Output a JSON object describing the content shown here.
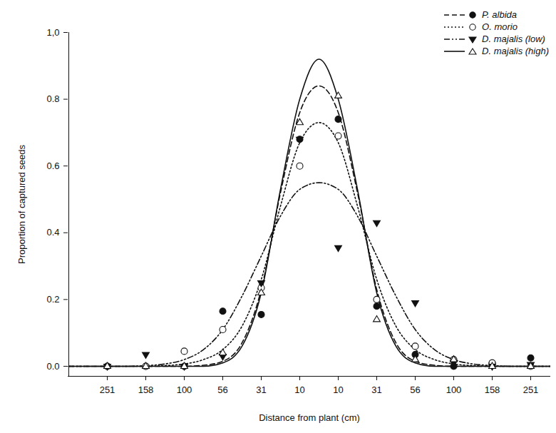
{
  "chart_data": {
    "type": "line",
    "x_label": "Distance from plant (cm)",
    "y_label": "Proportion of captured seeds",
    "categories": [
      null,
      null,
      "251",
      null,
      "158",
      null,
      "100",
      null,
      "56",
      null,
      "31",
      null,
      "10",
      null,
      "10",
      null,
      "31",
      null,
      "56",
      null,
      "100",
      null,
      "158",
      null,
      "251",
      null
    ],
    "ylim": [
      -0.03,
      1.0
    ],
    "yticks": [
      {
        "value": 0,
        "label": "0.0"
      },
      0.2,
      0.4,
      0.6,
      0.8,
      {
        "value": 1,
        "label": "1,0"
      }
    ],
    "legend": "top-right",
    "series": [
      {
        "name": "P. albida",
        "color": "#111111",
        "marker": "circle",
        "line_style": "dashed",
        "values": [
          0,
          0,
          0,
          0,
          0,
          0,
          0,
          0.003,
          0.015,
          0.07,
          0.23,
          0.52,
          0.76,
          0.84,
          0.76,
          0.52,
          0.23,
          0.07,
          0.015,
          0.003,
          0,
          0,
          0,
          0,
          0,
          0
        ],
        "observed": [
          null,
          null,
          0,
          null,
          0,
          null,
          0,
          null,
          0.165,
          null,
          0.155,
          null,
          0.68,
          null,
          0.74,
          null,
          0.18,
          null,
          0.035,
          null,
          0,
          null,
          0.01,
          null,
          0.025,
          null
        ]
      },
      {
        "name": "O. morio",
        "color": "#111111",
        "marker": "circle-open",
        "line_style": "dotted",
        "values": [
          0,
          0,
          0,
          0,
          0,
          0.002,
          0.007,
          0.02,
          0.05,
          0.12,
          0.26,
          0.48,
          0.67,
          0.73,
          0.67,
          0.48,
          0.26,
          0.12,
          0.05,
          0.02,
          0.007,
          0.002,
          0,
          0,
          0,
          0
        ],
        "observed": [
          null,
          null,
          0,
          null,
          0,
          null,
          0.045,
          null,
          0.11,
          null,
          0.235,
          null,
          0.6,
          null,
          0.69,
          null,
          0.2,
          null,
          0.06,
          null,
          0.02,
          null,
          0.01,
          null,
          0,
          null
        ]
      },
      {
        "name": "D. majalis (low)",
        "color": "#111111",
        "marker": "triangle-down",
        "line_style": "dashdot",
        "values": [
          0,
          0,
          0,
          0,
          0.002,
          0.007,
          0.02,
          0.05,
          0.11,
          0.21,
          0.33,
          0.45,
          0.53,
          0.55,
          0.53,
          0.45,
          0.33,
          0.21,
          0.11,
          0.05,
          0.02,
          0.007,
          0.002,
          0,
          0,
          0
        ],
        "observed": [
          null,
          null,
          0,
          null,
          0.035,
          null,
          0,
          null,
          0.03,
          null,
          0.25,
          null,
          0.68,
          null,
          0.355,
          null,
          0.43,
          null,
          0.19,
          null,
          0.01,
          null,
          0,
          null,
          0.005,
          null
        ]
      },
      {
        "name": "D. majalis (high)",
        "color": "#111111",
        "marker": "triangle-open",
        "line_style": "solid",
        "values": [
          0,
          0,
          0,
          0,
          0,
          0,
          0,
          0,
          0.01,
          0.06,
          0.22,
          0.53,
          0.8,
          0.92,
          0.8,
          0.53,
          0.22,
          0.06,
          0.01,
          0,
          0,
          0,
          0,
          0,
          0,
          0
        ],
        "observed": [
          null,
          null,
          0,
          null,
          0,
          null,
          0,
          null,
          0.04,
          null,
          0.22,
          null,
          0.73,
          null,
          0.81,
          null,
          0.14,
          null,
          0.02,
          null,
          0.02,
          null,
          0,
          null,
          0,
          null
        ]
      }
    ]
  }
}
